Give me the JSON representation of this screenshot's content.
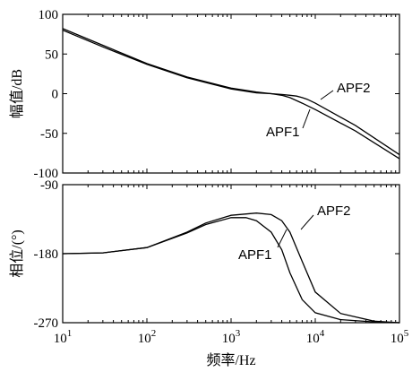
{
  "chart_data": [
    {
      "type": "line",
      "ylabel": "幅值/dB",
      "xscale": "log",
      "xlim": [
        10,
        100000
      ],
      "ylim": [
        -100,
        100
      ],
      "yticks": [
        100,
        50,
        0,
        -50,
        -100
      ],
      "yticklabels": [
        "100",
        "50",
        "0",
        "-50",
        "-100"
      ],
      "annotations": [
        {
          "text": "APF1",
          "x": 6000,
          "y": -12
        },
        {
          "text": "APF2",
          "x": 9000,
          "y": -9
        }
      ],
      "series": [
        {
          "name": "APF1",
          "x": [
            10,
            30,
            100,
            300,
            1000,
            2000,
            3000,
            4000,
            5000,
            7000,
            10000,
            30000,
            100000
          ],
          "y": [
            82,
            61,
            38,
            21,
            7,
            2,
            0,
            -2,
            -5,
            -12,
            -20,
            -47,
            -82
          ]
        },
        {
          "name": "APF2",
          "x": [
            10,
            30,
            100,
            300,
            1000,
            2000,
            3000,
            4000,
            5000,
            6000,
            7000,
            8000,
            10000,
            30000,
            100000
          ],
          "y": [
            80,
            59,
            37,
            20,
            6,
            1,
            0,
            -1,
            -2,
            -3,
            -5,
            -7,
            -12,
            -40,
            -77
          ]
        }
      ]
    },
    {
      "type": "line",
      "xlabel": "频率/Hz",
      "ylabel": "相位/(°)",
      "xscale": "log",
      "xlim": [
        10,
        100000
      ],
      "ylim": [
        -270,
        -90
      ],
      "xticks": [
        10,
        100,
        1000,
        10000,
        100000
      ],
      "xticklabels": [
        [
          "10",
          "1"
        ],
        [
          "10",
          "2"
        ],
        [
          "10",
          "3"
        ],
        [
          "10",
          "4"
        ],
        [
          "10",
          "5"
        ]
      ],
      "yticks": [
        -90,
        -180,
        -270
      ],
      "yticklabels": [
        "-90",
        "-180",
        "-270"
      ],
      "annotations": [
        {
          "text": "APF1",
          "x": 1500,
          "y": -180
        },
        {
          "text": "APF2",
          "x": 20000,
          "y": -150
        }
      ],
      "series": [
        {
          "name": "APF1",
          "x": [
            10,
            30,
            100,
            300,
            500,
            1000,
            1500,
            2000,
            3000,
            4000,
            5000,
            7000,
            10000,
            20000,
            50000,
            100000
          ],
          "y": [
            -180,
            -179,
            -172,
            -153,
            -142,
            -133,
            -133,
            -137,
            -152,
            -175,
            -205,
            -240,
            -257,
            -266,
            -269,
            -270
          ]
        },
        {
          "name": "APF2",
          "x": [
            10,
            30,
            100,
            300,
            500,
            1000,
            2000,
            3000,
            4000,
            5000,
            7000,
            10000,
            20000,
            50000,
            100000
          ],
          "y": [
            -180,
            -179,
            -172,
            -152,
            -140,
            -130,
            -127,
            -129,
            -137,
            -152,
            -190,
            -230,
            -258,
            -268,
            -270
          ]
        }
      ]
    }
  ]
}
